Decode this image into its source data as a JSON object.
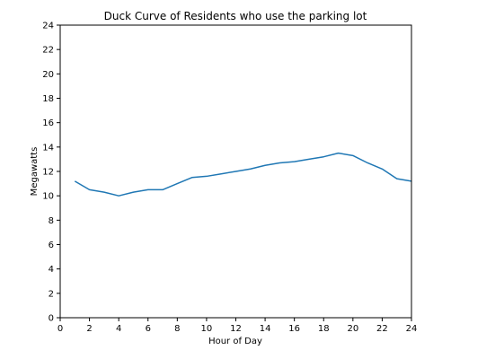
{
  "chart_data": {
    "type": "line",
    "title": "Duck Curve of Residents who use the parking lot",
    "xlabel": "Hour of Day",
    "ylabel": "Megawatts",
    "xlim": [
      0,
      24
    ],
    "ylim": [
      0,
      24
    ],
    "xticks": [
      0,
      2,
      4,
      6,
      8,
      10,
      12,
      14,
      16,
      18,
      20,
      22,
      24
    ],
    "yticks": [
      0,
      2,
      4,
      6,
      8,
      10,
      12,
      14,
      16,
      18,
      20,
      22,
      24
    ],
    "grid": false,
    "series": [
      {
        "color": "#1f77b4",
        "x": [
          1,
          2,
          3,
          4,
          5,
          6,
          7,
          8,
          9,
          10,
          11,
          12,
          13,
          14,
          15,
          16,
          17,
          18,
          19,
          20,
          21,
          22,
          23,
          24
        ],
        "y": [
          11.2,
          10.5,
          10.3,
          10.0,
          10.3,
          10.5,
          10.5,
          11.0,
          11.5,
          11.6,
          11.8,
          12.0,
          12.2,
          12.5,
          12.7,
          12.8,
          13.0,
          13.2,
          13.5,
          13.3,
          12.7,
          12.2,
          11.4,
          11.2
        ]
      }
    ]
  }
}
